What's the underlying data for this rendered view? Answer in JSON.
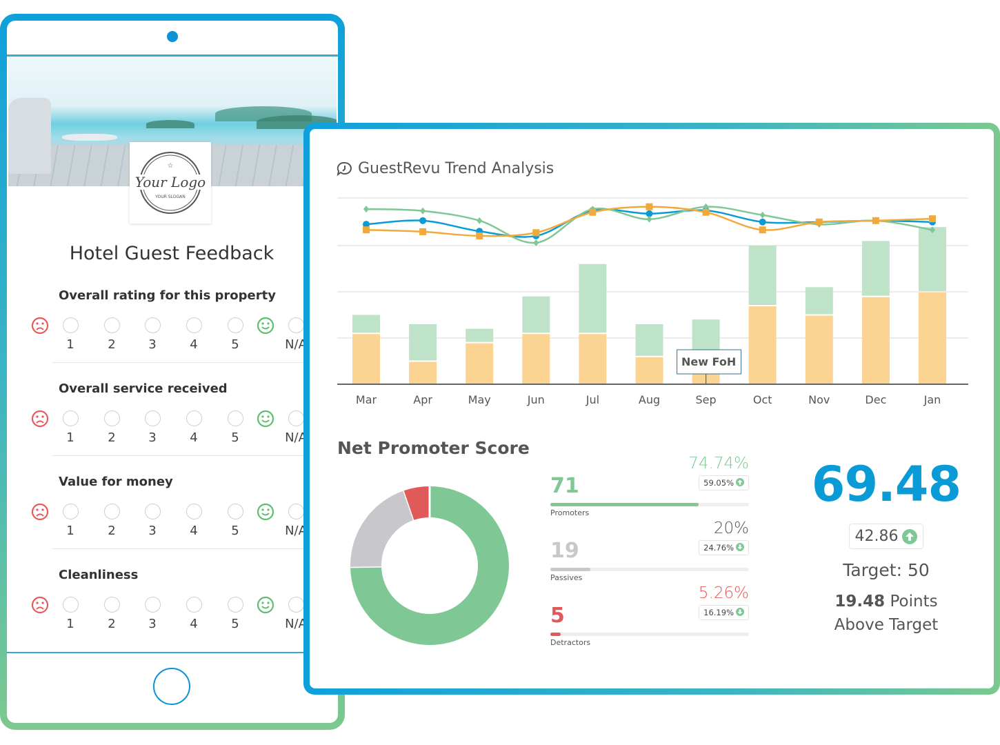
{
  "survey": {
    "logo_text": "Your Logo",
    "logo_slogan": "YOUR SLOGAN",
    "title": "Hotel Guest Feedback",
    "scale": [
      "1",
      "2",
      "3",
      "4",
      "5",
      "N/A"
    ],
    "questions": [
      {
        "label": "Overall rating for this property"
      },
      {
        "label": "Overall service received"
      },
      {
        "label": "Value for money"
      },
      {
        "label": "Cleanliness"
      }
    ],
    "colors": {
      "negative": "#e85a5a",
      "positive": "#5cbf6e"
    }
  },
  "dashboard": {
    "title": "GuestRevu Trend Analysis",
    "title_icon": "speech-bubble-clock-icon",
    "nps": {
      "title": "Net Promoter Score",
      "score": "69.48",
      "delta": "42.86",
      "delta_direction": "up",
      "target": "Target: 50",
      "above_points": "19.48",
      "above_points_suffix": " Points",
      "above_text": "Above Target",
      "groups": [
        {
          "label": "Promoters",
          "count": "71",
          "percent": "74.74%",
          "fraction": 0.7474,
          "change": "59.05%",
          "change_direction": "up",
          "color": "#7fc794",
          "pct_color": "#7fc794"
        },
        {
          "label": "Passives",
          "count": "19",
          "percent": "20%",
          "fraction": 0.2,
          "change": "24.76%",
          "change_direction": "down",
          "color": "#c8c8cc",
          "pct_color": "#555555"
        },
        {
          "label": "Detractors",
          "count": "5",
          "percent": "5.26%",
          "fraction": 0.0526,
          "change": "16.19%",
          "change_direction": "down",
          "color": "#e05a5a",
          "pct_color": "#e05a5a"
        }
      ]
    }
  },
  "chart_data": {
    "type": "bar",
    "title": "",
    "categories": [
      "Mar",
      "Apr",
      "May",
      "Jun",
      "Jul",
      "Aug",
      "Sep",
      "Oct",
      "Nov",
      "Dec",
      "Jan"
    ],
    "stacked": true,
    "grid": true,
    "ylim": [
      0,
      40
    ],
    "bar_series": [
      {
        "color": "#fbd392",
        "values": [
          11,
          5,
          9,
          11,
          11,
          6,
          4,
          17,
          15,
          19,
          20
        ]
      },
      {
        "color": "#bfe3c8",
        "values": [
          4,
          8,
          3,
          8,
          15,
          7,
          10,
          13,
          6,
          12,
          14
        ]
      }
    ],
    "line_series": [
      {
        "color": "#0a9bd7",
        "marker": "circle",
        "values": [
          34.6,
          35.4,
          33.1,
          32.1,
          37.6,
          36.9,
          37.6,
          35.1,
          35.1,
          35.4,
          35.1
        ]
      },
      {
        "color": "#7fc794",
        "marker": "diamond",
        "values": [
          37.9,
          37.5,
          35.4,
          30.6,
          37.9,
          35.7,
          38.4,
          36.6,
          34.6,
          35.4,
          33.4
        ]
      },
      {
        "color": "#f2a93b",
        "marker": "square",
        "values": [
          33.4,
          33.0,
          32.1,
          32.8,
          37.2,
          38.4,
          37.2,
          33.4,
          35.1,
          35.4,
          35.8
        ]
      }
    ],
    "annotations": [
      {
        "category": "Sep",
        "text": "New FoH"
      }
    ]
  }
}
